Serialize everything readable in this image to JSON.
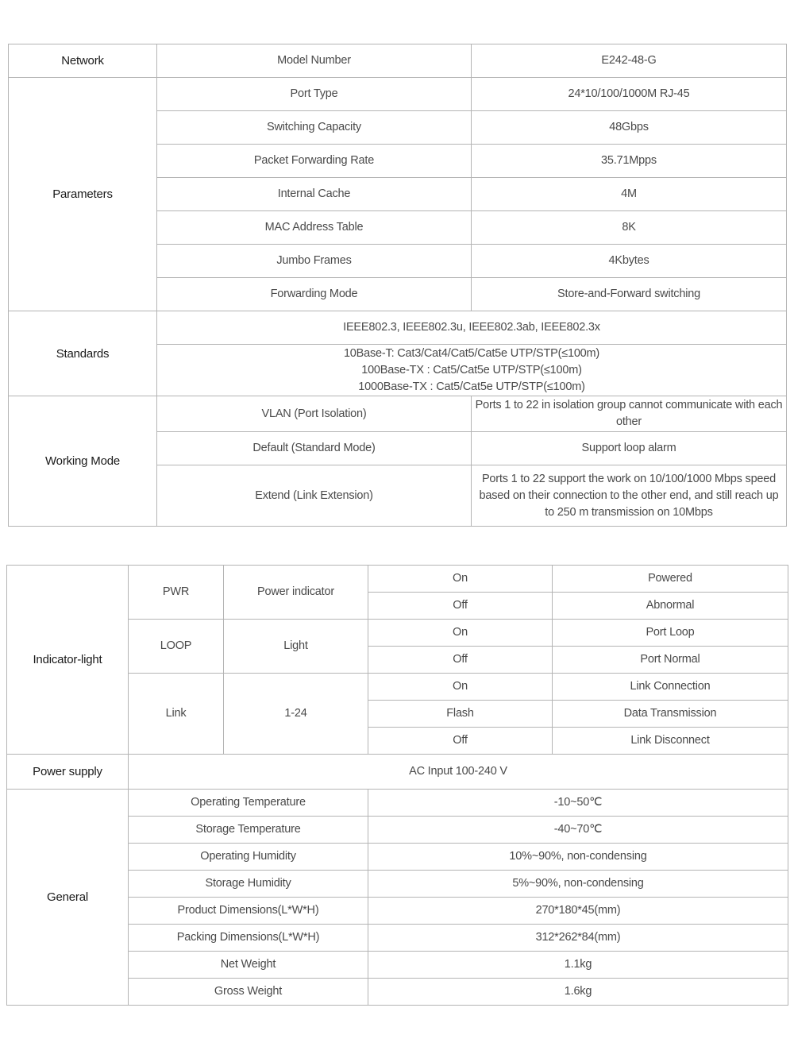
{
  "network": {
    "header": {
      "section": "Network",
      "label": "Model Number",
      "value": "E242-48-G"
    },
    "parameters": {
      "section": "Parameters",
      "rows": [
        {
          "label": "Port Type",
          "value": "24*10/100/1000M RJ-45"
        },
        {
          "label": "Switching Capacity",
          "value": "48Gbps"
        },
        {
          "label": "Packet Forwarding Rate",
          "value": "35.71Mpps"
        },
        {
          "label": "Internal Cache",
          "value": "4M"
        },
        {
          "label": "MAC Address Table",
          "value": "8K"
        },
        {
          "label": "Jumbo Frames",
          "value": "4Kbytes"
        },
        {
          "label": "Forwarding Mode",
          "value": "Store-and-Forward switching"
        }
      ]
    },
    "standards": {
      "section": "Standards",
      "protocols": "IEEE802.3, IEEE802.3u, IEEE802.3ab, IEEE802.3x",
      "cabling": [
        "10Base-T: Cat3/Cat4/Cat5/Cat5e UTP/STP(≤100m)",
        "100Base-TX : Cat5/Cat5e UTP/STP(≤100m)",
        "1000Base-TX : Cat5/Cat5e UTP/STP(≤100m)"
      ]
    },
    "working_mode": {
      "section": "Working Mode",
      "rows": [
        {
          "label": "VLAN (Port Isolation)",
          "value": "Ports 1 to 22 in isolation group cannot communicate with each other"
        },
        {
          "label": "Default (Standard Mode)",
          "value": "Support loop alarm"
        },
        {
          "label": "Extend (Link Extension)",
          "value": "Ports 1 to 22 support the work on 10/100/1000 Mbps speed based on their connection to the other end, and still reach up to 250 m transmission on 10Mbps"
        }
      ]
    }
  },
  "hardware": {
    "indicator": {
      "section": "Indicator-light",
      "groups": [
        {
          "name": "PWR",
          "desc": "Power indicator",
          "states": [
            {
              "state": "On",
              "meaning": "Powered"
            },
            {
              "state": "Off",
              "meaning": "Abnormal"
            }
          ]
        },
        {
          "name": "LOOP",
          "desc": "Light",
          "states": [
            {
              "state": "On",
              "meaning": "Port Loop"
            },
            {
              "state": "Off",
              "meaning": "Port Normal"
            }
          ]
        },
        {
          "name": "Link",
          "desc": "1-24",
          "states": [
            {
              "state": "On",
              "meaning": "Link Connection"
            },
            {
              "state": "Flash",
              "meaning": "Data Transmission"
            },
            {
              "state": "Off",
              "meaning": "Link Disconnect"
            }
          ]
        }
      ]
    },
    "power": {
      "section": "Power supply",
      "value": "AC Input 100-240 V"
    },
    "general": {
      "section": "General",
      "rows": [
        {
          "label": "Operating Temperature",
          "value": "-10~50℃"
        },
        {
          "label": "Storage Temperature",
          "value": "-40~70℃"
        },
        {
          "label": "Operating Humidity",
          "value": "10%~90%, non-condensing"
        },
        {
          "label": "Storage Humidity",
          "value": "5%~90%, non-condensing"
        },
        {
          "label": "Product Dimensions(L*W*H)",
          "value": "270*180*45(mm)"
        },
        {
          "label": "Packing Dimensions(L*W*H)",
          "value": "312*262*84(mm)"
        },
        {
          "label": "Net Weight",
          "value": "1.1kg"
        },
        {
          "label": "Gross Weight",
          "value": "1.6kg"
        }
      ]
    }
  }
}
